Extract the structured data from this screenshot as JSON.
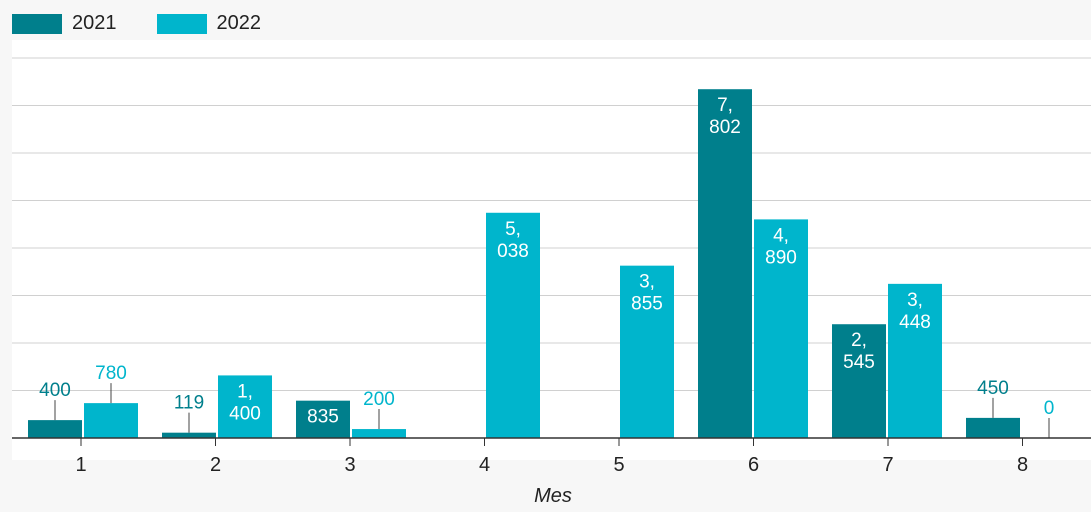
{
  "chart_data": {
    "type": "bar",
    "xlabel": "Mes",
    "categories": [
      "1",
      "2",
      "3",
      "4",
      "5",
      "6",
      "7",
      "8"
    ],
    "series": [
      {
        "name": "2021",
        "color": "#007f8c",
        "values": [
          400,
          119,
          835,
          null,
          null,
          7802,
          2545,
          450
        ],
        "labels": [
          "400",
          "119",
          "835",
          "",
          "",
          "7,\n802",
          "2,\n545",
          "450"
        ]
      },
      {
        "name": "2022",
        "color": "#00b5cc",
        "values": [
          780,
          1400,
          200,
          5038,
          3855,
          4890,
          3448,
          0
        ],
        "labels": [
          "780",
          "1,\n400",
          "200",
          "5,\n038",
          "3,\n855",
          "4,\n890",
          "3,\n448",
          "0"
        ]
      }
    ],
    "ylim": [
      0,
      8500
    ],
    "grid": true,
    "legend": "top-left"
  }
}
